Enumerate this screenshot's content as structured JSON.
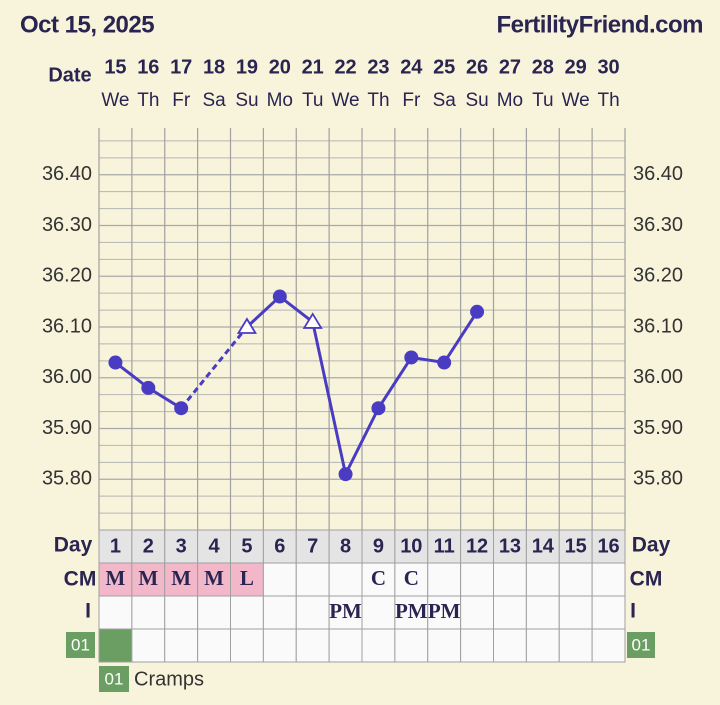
{
  "header": {
    "date": "Oct 15, 2025",
    "site": "FertilityFriend.com"
  },
  "chart_data": {
    "type": "line",
    "date_label": "Date",
    "dates": [
      15,
      16,
      17,
      18,
      19,
      20,
      21,
      22,
      23,
      24,
      25,
      26,
      27,
      28,
      29,
      30
    ],
    "weekdays": [
      "We",
      "Th",
      "Fr",
      "Sa",
      "Su",
      "Mo",
      "Tu",
      "We",
      "Th",
      "Fr",
      "Sa",
      "Su",
      "Mo",
      "Tu",
      "We",
      "Th"
    ],
    "x_label": "Day",
    "x": [
      1,
      2,
      3,
      4,
      5,
      6,
      7,
      8,
      9,
      10,
      11,
      12,
      13,
      14,
      15,
      16
    ],
    "values": [
      36.03,
      35.98,
      35.94,
      null,
      36.1,
      36.16,
      36.11,
      35.81,
      35.94,
      36.04,
      36.03,
      36.13,
      null,
      null,
      null,
      null
    ],
    "markers": [
      "circle",
      "circle",
      "circle",
      null,
      "triangle",
      "circle",
      "triangle",
      "circle",
      "circle",
      "circle",
      "circle",
      "circle",
      null,
      null,
      null,
      null
    ],
    "color": "#4a3cc2",
    "gap_line": "dashed",
    "ylim": [
      35.7,
      36.5
    ],
    "yticks": [
      {
        "value": 35.8,
        "label": "35.80"
      },
      {
        "value": 35.9,
        "label": "35.90"
      },
      {
        "value": 36.0,
        "label": "36.00"
      },
      {
        "value": 36.1,
        "label": "36.10"
      },
      {
        "value": 36.2,
        "label": "36.20"
      },
      {
        "value": 36.3,
        "label": "36.30"
      },
      {
        "value": 36.4,
        "label": "36.40"
      }
    ],
    "grid": true,
    "cm_label": "CM",
    "cm": [
      "M",
      "M",
      "M",
      "M",
      "L",
      null,
      null,
      null,
      "C",
      "C",
      null,
      null,
      null,
      null,
      null,
      null
    ],
    "cm_fill": [
      "#f2b8ca",
      "#f2b8ca",
      "#f2b8ca",
      "#f2b8ca",
      "#f2b8ca",
      null,
      null,
      null,
      null,
      null,
      null,
      null,
      null,
      null,
      null,
      null
    ],
    "i_label": "I",
    "intercourse": [
      null,
      null,
      null,
      null,
      null,
      null,
      null,
      "PM",
      null,
      "PM",
      "PM",
      null,
      null,
      null,
      null,
      null
    ],
    "symptom_code": "01",
    "symptom_color": "#6a9e62",
    "symptom_days": [
      true,
      false,
      false,
      false,
      false,
      false,
      false,
      false,
      false,
      false,
      false,
      false,
      false,
      false,
      false,
      false
    ],
    "symptom_name": "Cramps"
  }
}
